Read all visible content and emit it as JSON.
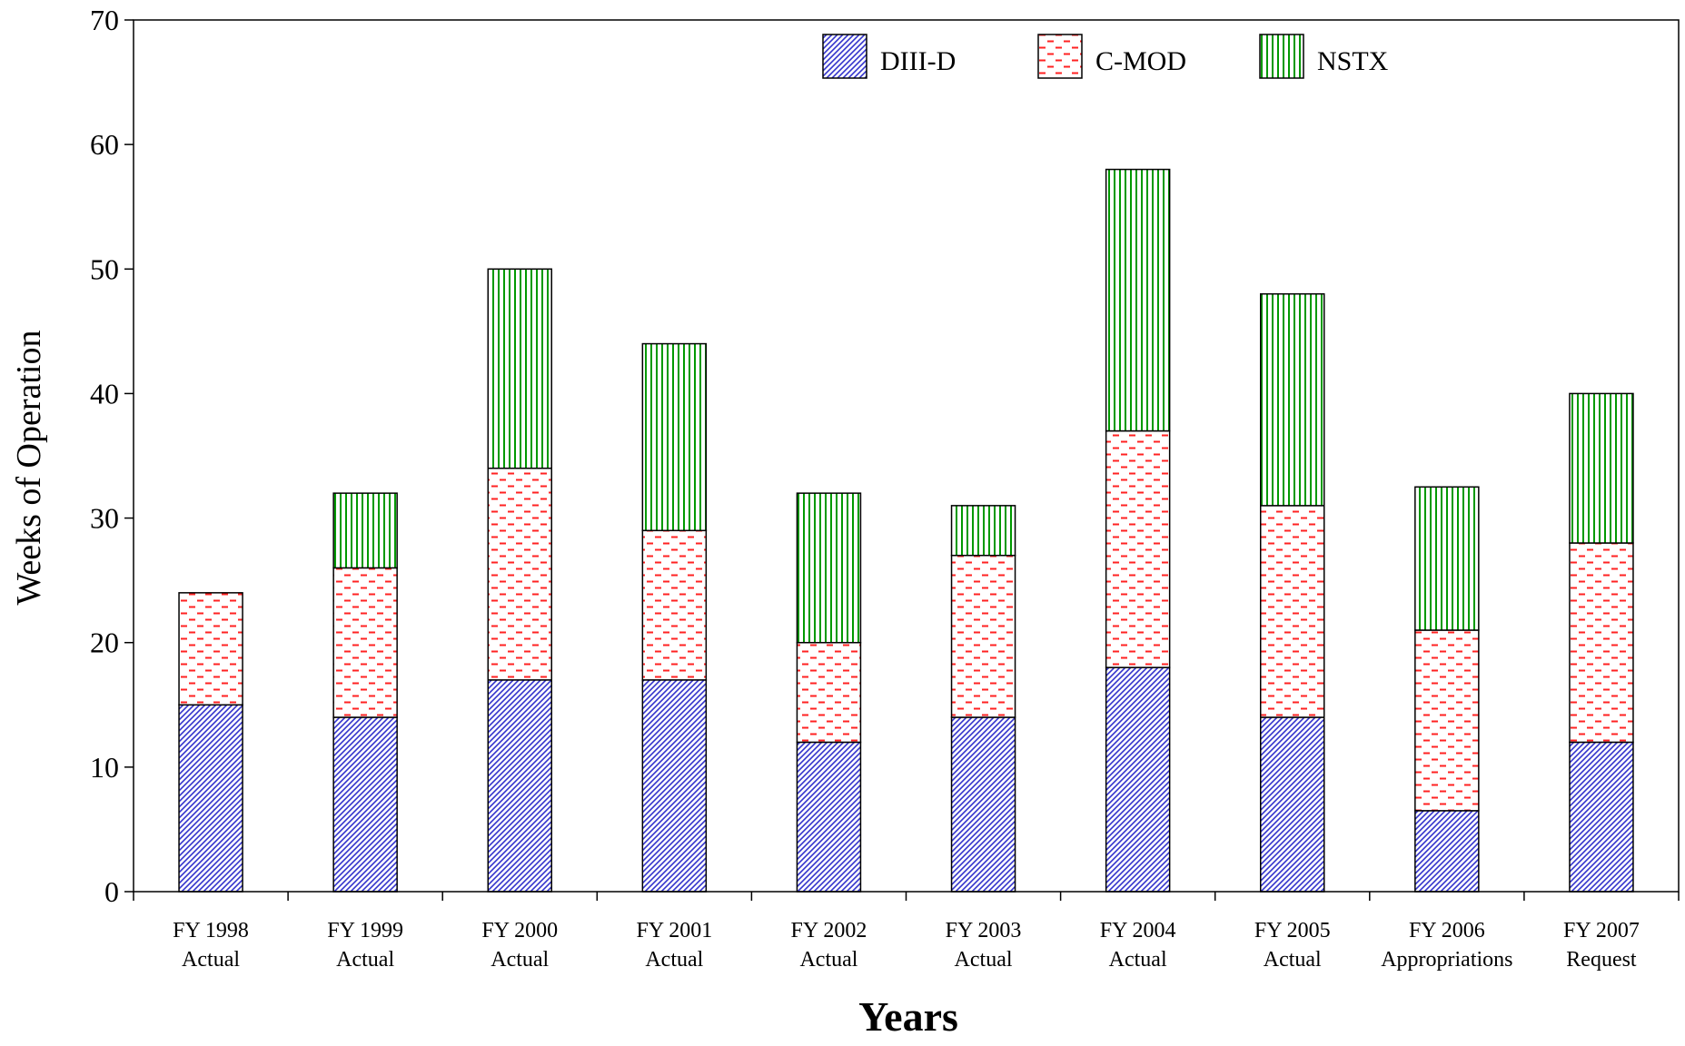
{
  "chart_data": {
    "type": "bar",
    "stacked": true,
    "title": "",
    "xlabel": "Years",
    "ylabel": "Weeks of Operation",
    "ylim": [
      0,
      70
    ],
    "yticks": [
      0,
      10,
      20,
      30,
      40,
      50,
      60,
      70
    ],
    "grid": false,
    "legend_position": "top-right",
    "categories": [
      [
        "FY 1998",
        "Actual"
      ],
      [
        "FY 1999",
        "Actual"
      ],
      [
        "FY 2000",
        "Actual"
      ],
      [
        "FY 2001",
        "Actual"
      ],
      [
        "FY 2002",
        "Actual"
      ],
      [
        "FY 2003",
        "Actual"
      ],
      [
        "FY 2004",
        "Actual"
      ],
      [
        "FY 2005",
        "Actual"
      ],
      [
        "FY 2006",
        "Appropriations"
      ],
      [
        "FY 2007",
        "Request"
      ]
    ],
    "series": [
      {
        "name": "DIII-D",
        "color": "#3333cc",
        "pattern": "diagonal-hatch",
        "values": [
          15,
          14,
          17,
          17,
          12,
          14,
          18,
          14,
          6.5,
          12
        ]
      },
      {
        "name": "C-MOD",
        "color": "#ff2222",
        "pattern": "dashes",
        "values": [
          9,
          12,
          17,
          12,
          8,
          13,
          19,
          17,
          14.5,
          16
        ]
      },
      {
        "name": "NSTX",
        "color": "#009900",
        "pattern": "vertical-lines",
        "values": [
          0,
          6,
          16,
          15,
          12,
          4,
          21,
          17,
          11.5,
          12
        ]
      }
    ]
  }
}
